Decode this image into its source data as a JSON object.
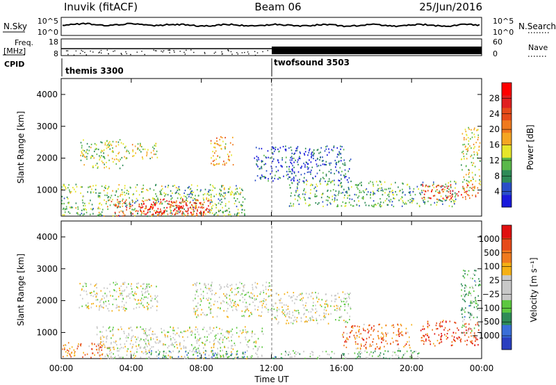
{
  "header": {
    "station": "Inuvik (fitACF)",
    "beam": "Beam 06",
    "date": "25/Jun/2016"
  },
  "strip": {
    "nsky_label": "N.Sky",
    "nsky_ticks": [
      "10^5",
      "10^0"
    ],
    "nsearch_label": "N.Search",
    "nsearch_ticks": [
      "10^5",
      "10^0"
    ],
    "freq_label": "Freq.",
    "freq_unit": "[MHz]",
    "freq_ticks": [
      "18",
      "8"
    ],
    "nave_label": "Nave",
    "nave_ticks": [
      "60",
      "0"
    ],
    "cpid_label": "CPID",
    "cpid_segments": [
      {
        "name": "themis 3300",
        "start_hour": 0
      },
      {
        "name": "twofsound 3503",
        "start_hour": 12
      }
    ]
  },
  "chart_data": [
    {
      "type": "heatmap",
      "quantity": "power",
      "ylabel": "Slant Range [km]",
      "xlabel": "Time UT",
      "xlim": [
        0,
        24
      ],
      "x_ticks": [
        "00:00",
        "04:00",
        "08:00",
        "12:00",
        "16:00",
        "20:00",
        "00:00"
      ],
      "ylim": [
        180,
        4500
      ],
      "y_ticks": [
        1000,
        2000,
        3000,
        4000
      ],
      "colorbar": {
        "label": "Power [dB]",
        "ticks": [
          "4",
          "8",
          "12",
          "16",
          "20",
          "24",
          "28"
        ],
        "colors": [
          "#1a1adc",
          "#2a4fc8",
          "#2e8b57",
          "#5ab84a",
          "#e6e62a",
          "#f5a623",
          "#f07a1e",
          "#e64a19",
          "#e02020",
          "#ff0000"
        ]
      },
      "regions": [
        {
          "t0": 0.0,
          "t1": 10.5,
          "r0": 200,
          "r1": 1200,
          "level": 0.35
        },
        {
          "t0": 2.6,
          "t1": 8.6,
          "r0": 200,
          "r1": 750,
          "level": 0.7
        },
        {
          "t0": 4.5,
          "t1": 8.4,
          "r0": 250,
          "r1": 650,
          "level": 0.9
        },
        {
          "t0": 1.0,
          "t1": 3.5,
          "r0": 1700,
          "r1": 2600,
          "level": 0.4
        },
        {
          "t0": 3.5,
          "t1": 5.5,
          "r0": 2000,
          "r1": 2500,
          "level": 0.45
        },
        {
          "t0": 8.5,
          "t1": 9.8,
          "r0": 1800,
          "r1": 2700,
          "level": 0.55
        },
        {
          "t0": 11.0,
          "t1": 16.5,
          "r0": 1300,
          "r1": 2400,
          "level": 0.15
        },
        {
          "t0": 13.0,
          "t1": 22.5,
          "r0": 500,
          "r1": 1300,
          "level": 0.3
        },
        {
          "t0": 20.5,
          "t1": 23.8,
          "r0": 700,
          "r1": 1200,
          "level": 0.75
        },
        {
          "t0": 22.8,
          "t1": 23.9,
          "r0": 1000,
          "r1": 3000,
          "level": 0.45
        }
      ]
    },
    {
      "type": "heatmap",
      "quantity": "velocity",
      "ylabel": "Slant Range [km]",
      "xlabel": "Time UT",
      "xlim": [
        0,
        24
      ],
      "x_ticks": [
        "00:00",
        "04:00",
        "08:00",
        "12:00",
        "16:00",
        "20:00",
        "00:00"
      ],
      "ylim": [
        180,
        4500
      ],
      "y_ticks": [
        1000,
        2000,
        3000,
        4000
      ],
      "colorbar": {
        "label": "Velocity [m s⁻¹]",
        "ticks": [
          "1000",
          "500",
          "100",
          "25",
          "−25",
          "−100",
          "−500",
          "−1000"
        ],
        "colors": [
          "#2a3fc0",
          "#3a6fd8",
          "#2e8b57",
          "#5cc840",
          "#c8c8c8",
          "#c8c8c8",
          "#f5b014",
          "#f07a1e",
          "#e64a19",
          "#e01010"
        ]
      },
      "regions": [
        {
          "t0": 0.0,
          "t1": 3.0,
          "r0": 200,
          "r1": 700,
          "level": 0.75
        },
        {
          "t0": 2.0,
          "t1": 11.5,
          "r0": 200,
          "r1": 1200,
          "level": 0.5
        },
        {
          "t0": 5.0,
          "t1": 10.5,
          "r0": 200,
          "r1": 450,
          "level": 0.25
        },
        {
          "t0": 1.0,
          "t1": 5.5,
          "r0": 1700,
          "r1": 2600,
          "level": 0.5
        },
        {
          "t0": 7.5,
          "t1": 12.0,
          "r0": 1500,
          "r1": 2600,
          "level": 0.5
        },
        {
          "t0": 12.0,
          "t1": 16.5,
          "r0": 1300,
          "r1": 2300,
          "level": 0.5
        },
        {
          "t0": 12.0,
          "t1": 20.5,
          "r0": 200,
          "r1": 450,
          "level": 0.35
        },
        {
          "t0": 16.0,
          "t1": 20.0,
          "r0": 500,
          "r1": 1300,
          "level": 0.75
        },
        {
          "t0": 20.5,
          "t1": 23.8,
          "r0": 600,
          "r1": 1400,
          "level": 0.85
        },
        {
          "t0": 22.8,
          "t1": 23.9,
          "r0": 1000,
          "r1": 3000,
          "level": 0.35
        }
      ]
    }
  ]
}
